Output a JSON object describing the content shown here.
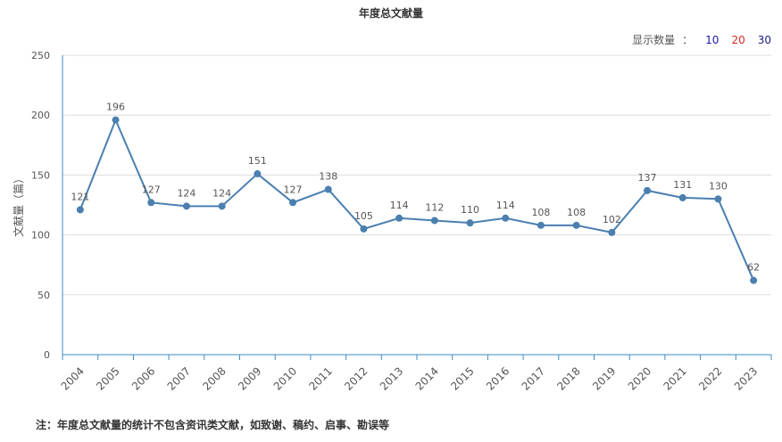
{
  "title": "年度总文献量",
  "display_count": {
    "label": "显示数量",
    "separator": "：",
    "options": [
      {
        "label": "10",
        "color": "#1a1aa6"
      },
      {
        "label": "20",
        "color": "#d42a2a"
      },
      {
        "label": "30",
        "color": "#1a1a8a"
      }
    ]
  },
  "footnote": "注：年度总文献量的统计不包含资讯类文献，如致谢、稿约、启事、勘误等",
  "colors": {
    "line": "#4a7fb0",
    "axis": "#3b8bc4",
    "grid": "#dddddd",
    "text": "#555555"
  },
  "chart_data": {
    "type": "line",
    "ylabel": "文献量（篇）",
    "xlabel": "",
    "ylim": [
      0,
      250
    ],
    "yticks": [
      0,
      50,
      100,
      150,
      200,
      250
    ],
    "grid": true,
    "categories": [
      "2004",
      "2005",
      "2006",
      "2007",
      "2008",
      "2009",
      "2010",
      "2011",
      "2012",
      "2013",
      "2014",
      "2015",
      "2016",
      "2017",
      "2018",
      "2019",
      "2020",
      "2021",
      "2022",
      "2023"
    ],
    "series": [
      {
        "values": [
          121,
          196,
          127,
          124,
          124,
          151,
          127,
          138,
          105,
          114,
          112,
          110,
          114,
          108,
          108,
          102,
          137,
          131,
          130,
          62
        ]
      }
    ]
  }
}
